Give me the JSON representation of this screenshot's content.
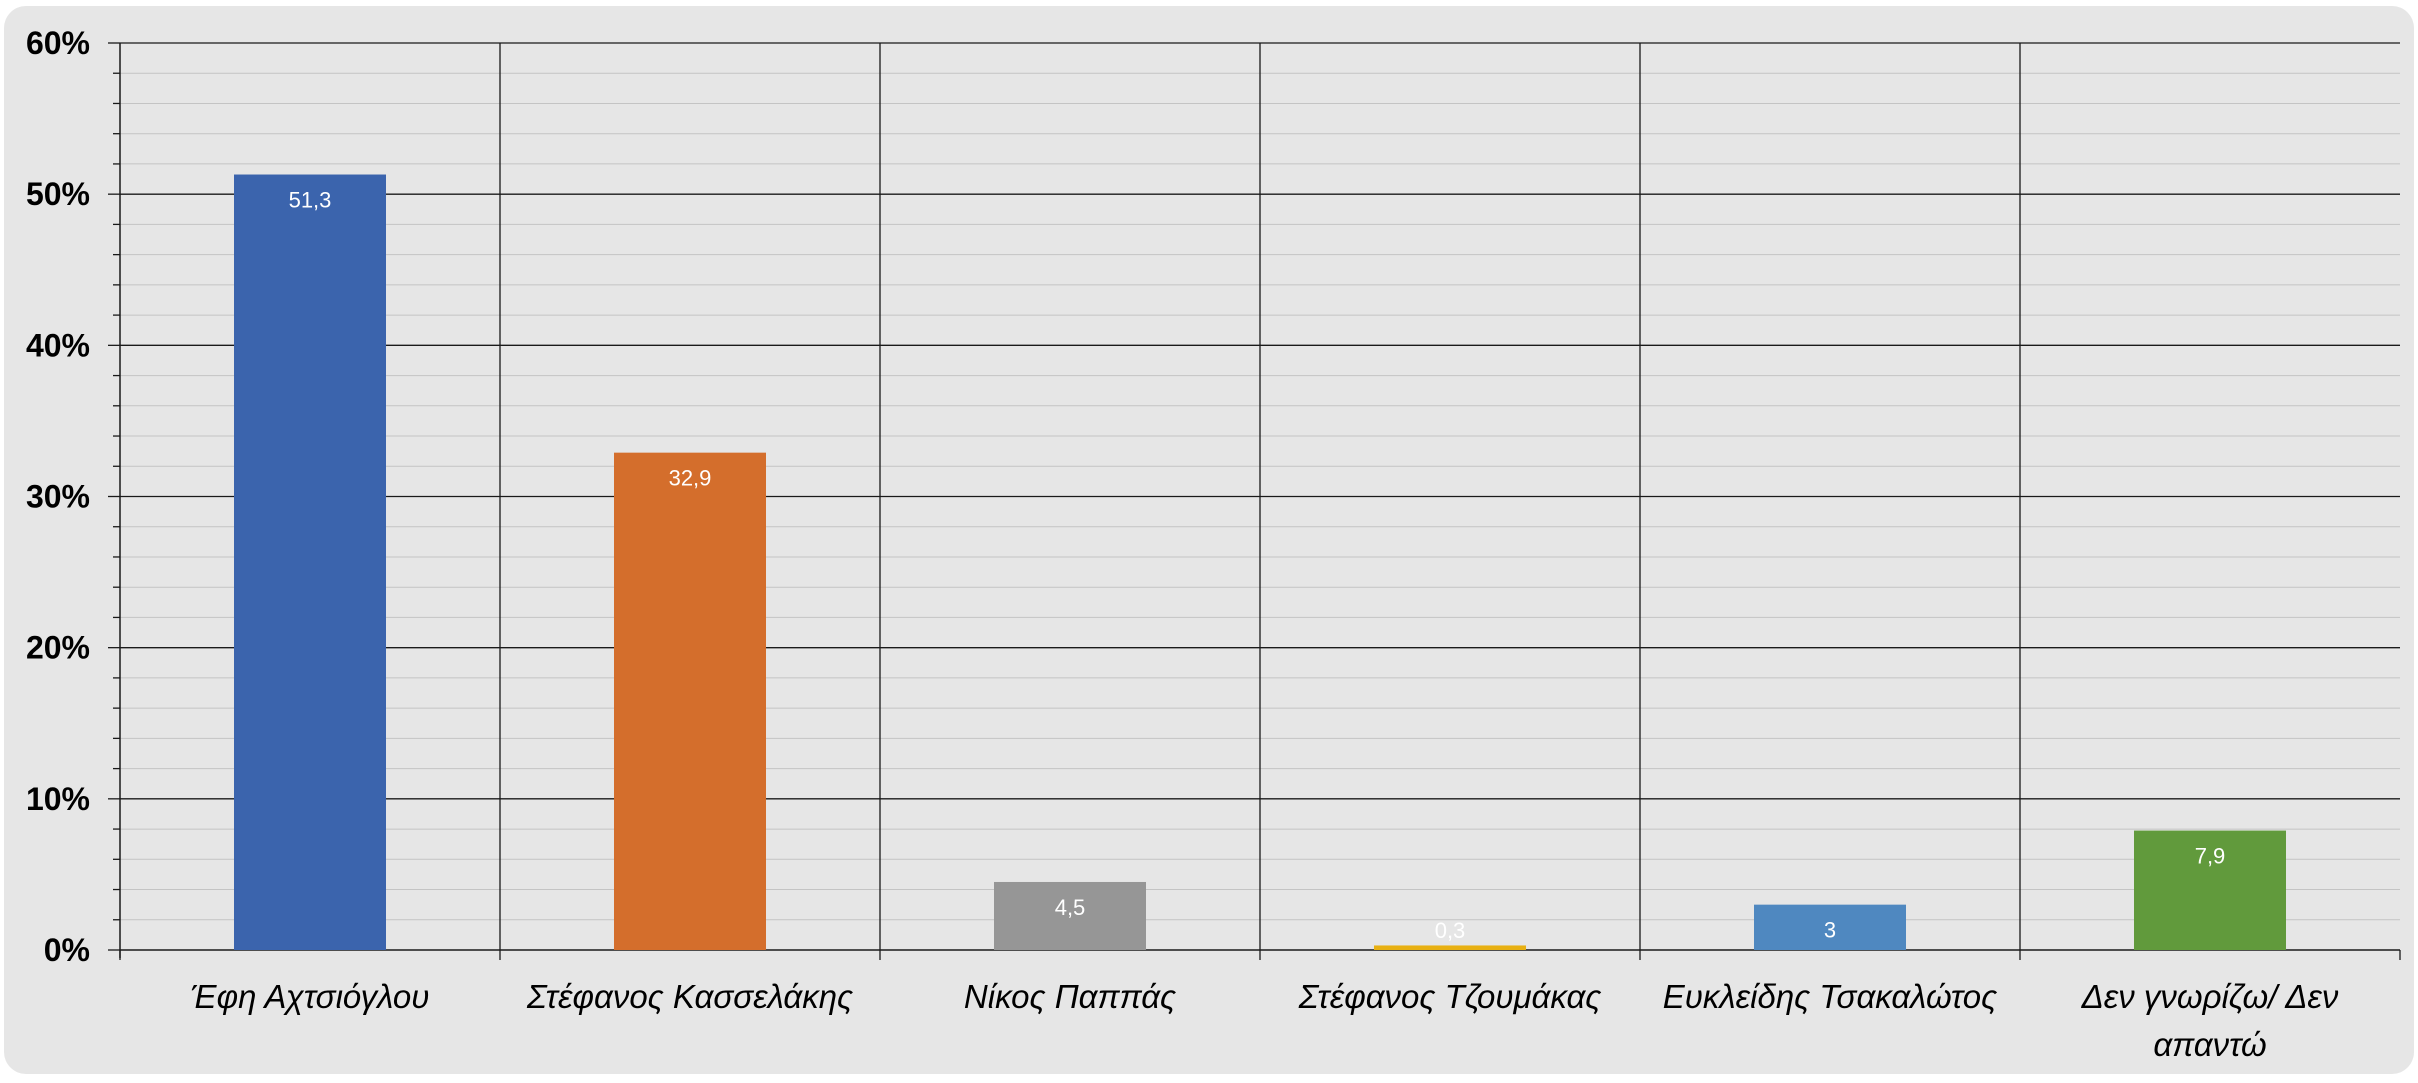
{
  "chart_data": {
    "type": "bar",
    "categories": [
      [
        "Έφη Αχτσιόγλου"
      ],
      [
        "Στέφανος Κασσελάκης"
      ],
      [
        "Νίκος Παππάς"
      ],
      [
        "Στέφανος Τζουμάκας"
      ],
      [
        "Ευκλείδης Τσακαλώτος"
      ],
      [
        "Δεν γνωρίζω/  Δεν",
        "απαντώ"
      ]
    ],
    "values": [
      51.3,
      32.9,
      4.5,
      0.3,
      3,
      7.9
    ],
    "data_labels": [
      "51,3",
      "32,9",
      "4,5",
      "0,3",
      "3",
      "7,9"
    ],
    "colors": [
      "#3b64ad",
      "#d46e2c",
      "#969696",
      "#e8b012",
      "#4f88c0",
      "#619a3c"
    ],
    "ylim": [
      0,
      60
    ],
    "yticks": [
      0,
      10,
      20,
      30,
      40,
      50,
      60
    ],
    "ytick_labels": [
      "0%",
      "10%",
      "20%",
      "30%",
      "40%",
      "50%",
      "60%"
    ],
    "minor_step": 2,
    "grid": true,
    "title": "",
    "xlabel": "",
    "ylabel": "",
    "background": "#e6e6e6"
  }
}
